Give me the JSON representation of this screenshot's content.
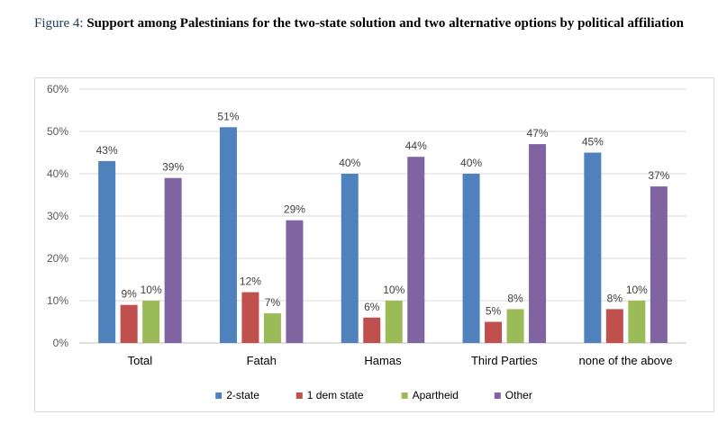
{
  "title": {
    "figure_label": "Figure 4:",
    "text": "Support among Palestinians for the two-state solution and two alternative options by political affiliation"
  },
  "chart_data": {
    "type": "bar",
    "categories": [
      "Total",
      "Fatah",
      "Hamas",
      "Third Parties",
      "none of the above"
    ],
    "series": [
      {
        "name": "2-state",
        "values": [
          43,
          51,
          40,
          40,
          45
        ],
        "labels": [
          "43%",
          "51%",
          "40%",
          "40%",
          "45%"
        ],
        "color": "#4f81bd"
      },
      {
        "name": "1 dem state",
        "values": [
          9,
          12,
          6,
          5,
          8
        ],
        "labels": [
          "9%",
          "12%",
          "6%",
          "5%",
          "8%"
        ],
        "color": "#c0504d"
      },
      {
        "name": "Apartheid",
        "values": [
          10,
          7,
          10,
          8,
          10
        ],
        "labels": [
          "10%",
          "7%",
          "10%",
          "8%",
          "10%"
        ],
        "color": "#9bbb59"
      },
      {
        "name": "Other",
        "values": [
          39,
          29,
          44,
          47,
          37
        ],
        "labels": [
          "39%",
          "29%",
          "44%",
          "47%",
          "37%"
        ],
        "color": "#8064a2"
      }
    ],
    "ylim": [
      0,
      60
    ],
    "yticks": [
      "0%",
      "10%",
      "20%",
      "30%",
      "40%",
      "50%",
      "60%"
    ],
    "grid": true,
    "legend_position": "bottom"
  }
}
